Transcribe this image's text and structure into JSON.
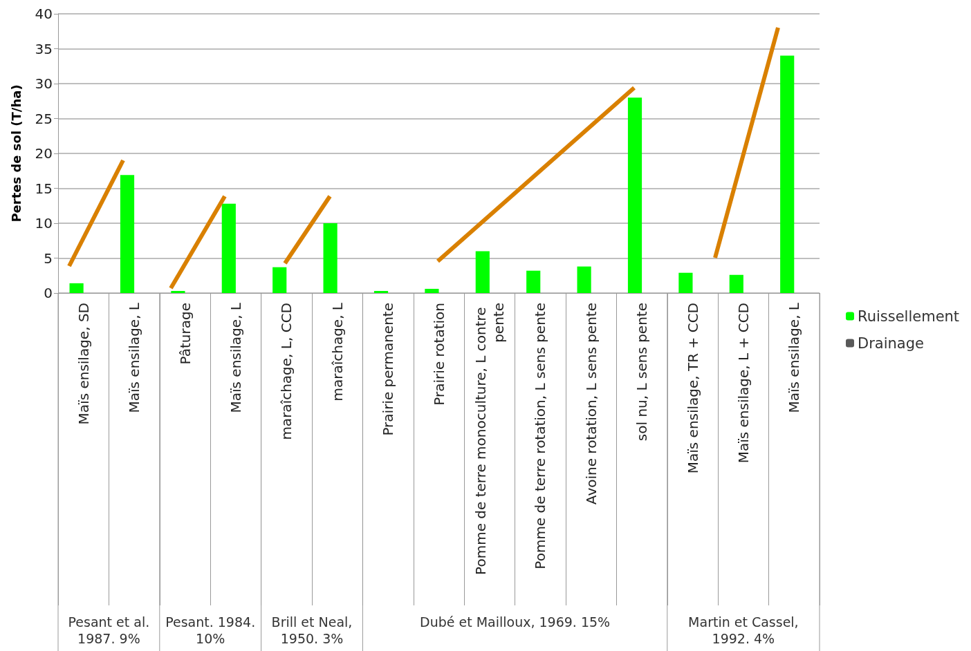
{
  "chart_data": {
    "type": "bar",
    "ylabel": "Pertes de sol (T/ha)",
    "categories": [
      "Maïs ensilage, SD",
      "Maïs ensilage, L",
      "Pâturage",
      "Maïs ensilage, L",
      "maraîchage, L, CCD",
      "maraîchage, L",
      "Prairie permanente",
      "Prairie rotation",
      "Pomme de terre monoculture, L contre pente",
      "Pomme de terre rotation, L sens pente",
      "Avoine rotation, L sens pente",
      "sol nu, L sens pente",
      "Maïs ensilage, TR + CCD",
      "Maïs ensilage, L + CCD",
      "Maïs ensilage, L"
    ],
    "series": [
      {
        "name": "Ruissellement",
        "color": "#00ff00",
        "values": [
          1.4,
          16.9,
          0.3,
          12.8,
          3.7,
          10,
          0.3,
          0.6,
          6,
          3.2,
          3.8,
          28,
          2.9,
          2.6,
          34
        ]
      },
      {
        "name": "Drainage",
        "color": "#595959",
        "values": [
          null,
          null,
          null,
          null,
          null,
          null,
          null,
          null,
          null,
          null,
          null,
          null,
          null,
          null,
          null
        ]
      }
    ],
    "ylim": [
      0,
      40
    ],
    "yticks": [
      0,
      5,
      10,
      15,
      20,
      25,
      30,
      35,
      40
    ],
    "grid": "y",
    "legend": "right",
    "annotations": [
      "Pesant et al. 1987. 9%",
      "Pesant. 1984. 10%",
      "Brill et Neal, 1950. 3%",
      "Dubé et Mailloux, 1969. 15%",
      "Martin et Cassel, 1992. 4%"
    ]
  }
}
